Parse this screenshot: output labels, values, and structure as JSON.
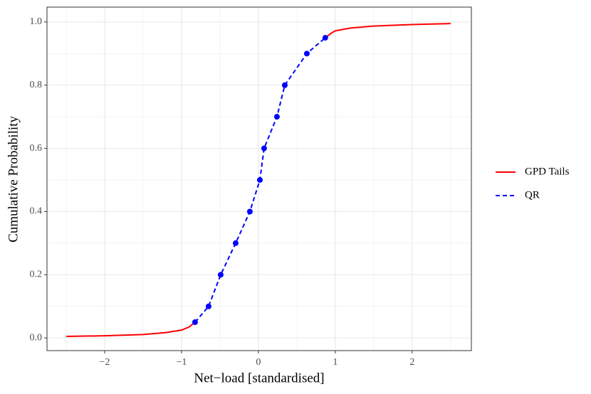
{
  "chart_data": {
    "type": "line",
    "x_label": "Net−load [standardised]",
    "y_label": "Cumulative Probability",
    "xlim": [
      -2.75,
      2.77
    ],
    "ylim": [
      -0.04,
      1.047
    ],
    "xticks": [
      {
        "value": -2,
        "label": "−2"
      },
      {
        "value": -1,
        "label": "−1"
      },
      0,
      1,
      2
    ],
    "yticks": [
      {
        "value": 0,
        "label": "0.0"
      },
      {
        "value": 0.2,
        "label": "0.2"
      },
      {
        "value": 0.4,
        "label": "0.4"
      },
      {
        "value": 0.6,
        "label": "0.6"
      },
      {
        "value": 0.8,
        "label": "0.8"
      },
      {
        "value": 1,
        "label": "1.0"
      }
    ],
    "x_minor_ticks": [
      -2.5,
      -1.5,
      -0.5,
      0.5,
      1.5,
      2.5
    ],
    "y_minor_ticks": [
      0.1,
      0.3,
      0.5,
      0.7,
      0.9
    ],
    "grid": true,
    "legend_position": "right",
    "series": [
      {
        "name": "GPD Tails",
        "color": "#ff0000",
        "line_style": "solid",
        "marker": false,
        "x": [
          -2.5,
          -2.0,
          -1.5,
          -1.2,
          -1.0,
          -0.9,
          -0.824,
          null,
          0.87,
          0.95,
          1.0,
          1.2,
          1.5,
          2.0,
          2.5
        ],
        "values": [
          0.005,
          0.007,
          0.011,
          0.017,
          0.025,
          0.035,
          0.05,
          null,
          0.95,
          0.965,
          0.972,
          0.981,
          0.987,
          0.992,
          0.995
        ]
      },
      {
        "name": "QR",
        "color": "#0000ff",
        "line_style": "dashed",
        "marker": true,
        "x": [
          -0.824,
          -0.648,
          -0.491,
          -0.296,
          -0.111,
          0.019,
          0.074,
          0.241,
          0.343,
          0.63,
          0.87
        ],
        "values": [
          0.05,
          0.1,
          0.2,
          0.3,
          0.4,
          0.5,
          0.6,
          0.7,
          0.8,
          0.9,
          0.95
        ]
      }
    ]
  }
}
